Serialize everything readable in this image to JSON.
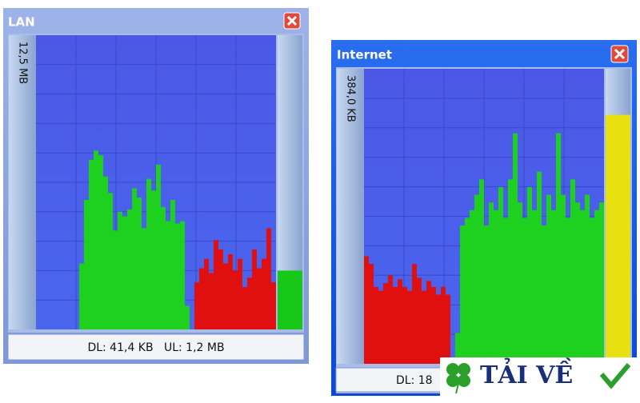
{
  "windows": [
    {
      "title": "LAN",
      "scale_label": "12,5 MB",
      "status": "DL: 41,4 KB   UL: 1,2 MB",
      "graph": {
        "ylim": [
          0,
          12.5
        ],
        "download": {
          "color": "#1fd11f",
          "values": [
            0,
            0,
            0,
            0,
            0,
            0,
            0,
            0,
            0,
            2.8,
            5.5,
            7.2,
            7.6,
            7.4,
            6.5,
            5.8,
            4.2,
            5.0,
            4.8,
            5.1,
            6.0,
            5.6,
            4.3,
            6.4,
            5.9,
            7.0,
            5.2,
            4.6,
            5.5,
            4.5,
            4.6,
            1.0,
            0,
            0,
            0,
            0,
            0,
            0,
            0,
            0,
            0,
            0,
            0,
            0,
            0,
            0,
            0,
            0,
            0,
            0
          ]
        },
        "upload": {
          "color": "#e01010",
          "values": [
            0,
            0,
            0,
            0,
            0,
            0,
            0,
            0,
            0,
            0,
            0,
            0,
            0,
            0,
            0,
            0,
            0,
            0,
            0,
            0,
            0,
            0,
            0,
            0,
            0,
            0,
            0,
            0,
            0,
            0,
            0,
            0,
            0,
            2.0,
            2.6,
            3.0,
            2.4,
            3.8,
            3.4,
            2.8,
            3.2,
            2.5,
            3.0,
            1.8,
            2.2,
            3.4,
            2.6,
            3.0,
            4.3,
            2.0
          ]
        },
        "meter": {
          "value": 2.5,
          "color": "#18c818"
        }
      }
    },
    {
      "title": "Internet",
      "scale_label": "384,0 KB",
      "status": "DL: 18",
      "graph": {
        "ylim": [
          0,
          384.0
        ],
        "download": {
          "color": "#1fd11f",
          "values": [
            0,
            0,
            0,
            0,
            0,
            0,
            0,
            0,
            0,
            0,
            0,
            0,
            0,
            0,
            0,
            0,
            0,
            0,
            0,
            40,
            180,
            190,
            200,
            220,
            240,
            180,
            210,
            200,
            230,
            190,
            240,
            300,
            210,
            190,
            230,
            200,
            250,
            180,
            220,
            200,
            300,
            220,
            190,
            240,
            210,
            200,
            220,
            190,
            200,
            210
          ]
        },
        "upload": {
          "color": "#e01010",
          "values": [
            140,
            130,
            100,
            95,
            105,
            115,
            100,
            110,
            100,
            95,
            130,
            112,
            95,
            108,
            100,
            90,
            100,
            90,
            0,
            0,
            0,
            0,
            0,
            0,
            0,
            0,
            0,
            0,
            0,
            0,
            0,
            0,
            0,
            0,
            0,
            0,
            0,
            0,
            0,
            0,
            0,
            0,
            0,
            0,
            0,
            0,
            0,
            0,
            0,
            0
          ]
        },
        "meter": {
          "value": 324,
          "color": "#e8e010"
        }
      }
    }
  ],
  "watermark": {
    "text": "TẢI VỀ"
  }
}
